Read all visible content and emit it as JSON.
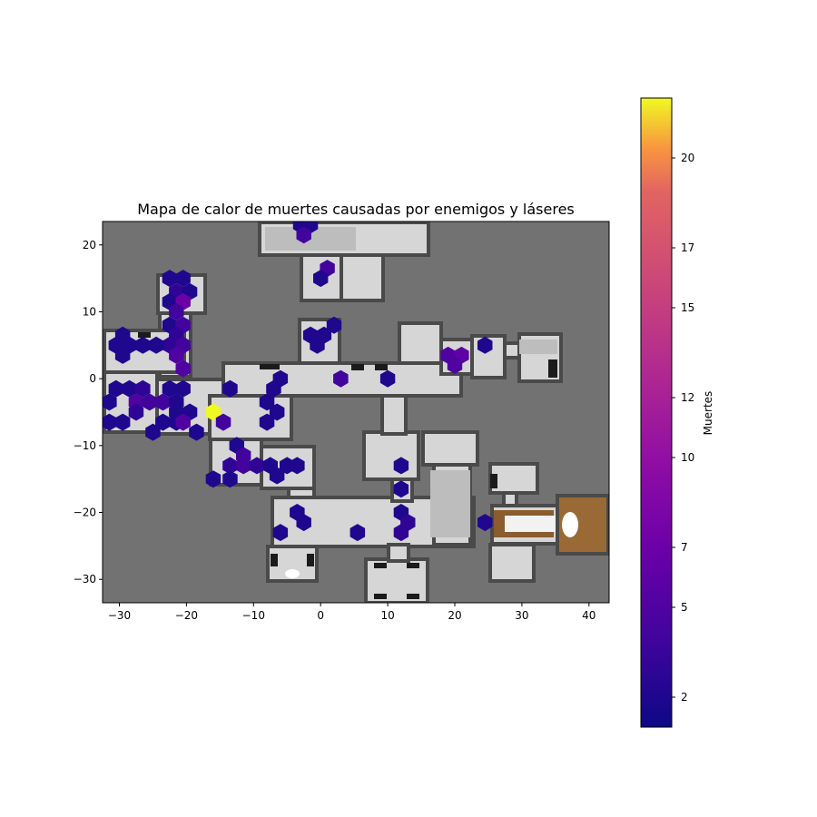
{
  "chart_data": {
    "type": "heatmap",
    "title": "Mapa de calor de muertes causadas por enemigos y láseres",
    "xlabel": "",
    "ylabel": "",
    "xlim": [
      -32.5,
      43
    ],
    "ylim": [
      -33.5,
      23.5
    ],
    "xticks": [
      -30,
      -20,
      -10,
      0,
      10,
      20,
      30,
      40
    ],
    "yticks": [
      20,
      10,
      0,
      -10,
      -20,
      -30
    ],
    "colorbar": {
      "label": "Muertes",
      "colormap": "plasma",
      "range": [
        1,
        22
      ],
      "ticks": [
        2,
        5,
        7,
        10,
        12,
        15,
        17,
        20
      ]
    },
    "background_map": "top-down level floor plan",
    "cells": [
      {
        "x": -3,
        "y": 23,
        "v": 2
      },
      {
        "x": -1.5,
        "y": 23,
        "v": 2
      },
      {
        "x": -2.5,
        "y": 21.5,
        "v": 4
      },
      {
        "x": 1,
        "y": 16.5,
        "v": 4
      },
      {
        "x": 0,
        "y": 15,
        "v": 2
      },
      {
        "x": -22.5,
        "y": 15,
        "v": 2
      },
      {
        "x": -20.5,
        "y": 15,
        "v": 2
      },
      {
        "x": -21.5,
        "y": 13,
        "v": 3
      },
      {
        "x": -19.5,
        "y": 13,
        "v": 2
      },
      {
        "x": -22.5,
        "y": 11.5,
        "v": 2
      },
      {
        "x": -20.5,
        "y": 11.5,
        "v": 7
      },
      {
        "x": -21.5,
        "y": 10,
        "v": 4
      },
      {
        "x": -22.5,
        "y": 8,
        "v": 2
      },
      {
        "x": -20.5,
        "y": 8,
        "v": 4
      },
      {
        "x": -21.5,
        "y": 6.5,
        "v": 3
      },
      {
        "x": -22.5,
        "y": 5,
        "v": 3
      },
      {
        "x": -20.5,
        "y": 5,
        "v": 4
      },
      {
        "x": -21.5,
        "y": 3.5,
        "v": 5
      },
      {
        "x": -20.5,
        "y": 1.5,
        "v": 5
      },
      {
        "x": 2,
        "y": 8,
        "v": 2
      },
      {
        "x": -1.5,
        "y": 6.5,
        "v": 2
      },
      {
        "x": 0.5,
        "y": 6.5,
        "v": 2
      },
      {
        "x": -0.5,
        "y": 5,
        "v": 2
      },
      {
        "x": -29.5,
        "y": 6.5,
        "v": 2
      },
      {
        "x": -30.5,
        "y": 5,
        "v": 2
      },
      {
        "x": -28.5,
        "y": 5,
        "v": 2
      },
      {
        "x": -26.5,
        "y": 5,
        "v": 2
      },
      {
        "x": -24.5,
        "y": 5,
        "v": 2
      },
      {
        "x": -29.5,
        "y": 3.5,
        "v": 2
      },
      {
        "x": 24.5,
        "y": 5,
        "v": 2
      },
      {
        "x": 19,
        "y": 3.5,
        "v": 5
      },
      {
        "x": 21,
        "y": 3.5,
        "v": 6
      },
      {
        "x": 20,
        "y": 2,
        "v": 5
      },
      {
        "x": -6,
        "y": 0,
        "v": 2
      },
      {
        "x": 3,
        "y": 0,
        "v": 4
      },
      {
        "x": 10,
        "y": 0,
        "v": 2
      },
      {
        "x": -30.5,
        "y": -1.5,
        "v": 2
      },
      {
        "x": -28.5,
        "y": -1.5,
        "v": 2
      },
      {
        "x": -26.5,
        "y": -1.5,
        "v": 3
      },
      {
        "x": -22.5,
        "y": -1.5,
        "v": 2
      },
      {
        "x": -20.5,
        "y": -1.5,
        "v": 2
      },
      {
        "x": -13.5,
        "y": -1.5,
        "v": 2
      },
      {
        "x": -7,
        "y": -1.5,
        "v": 2
      },
      {
        "x": -31.5,
        "y": -3.5,
        "v": 2
      },
      {
        "x": -27.5,
        "y": -3.5,
        "v": 5
      },
      {
        "x": -25.5,
        "y": -3.5,
        "v": 4
      },
      {
        "x": -23.5,
        "y": -3.5,
        "v": 4
      },
      {
        "x": -21.5,
        "y": -3.5,
        "v": 2
      },
      {
        "x": -8,
        "y": -3.5,
        "v": 2
      },
      {
        "x": -27.5,
        "y": -5,
        "v": 3
      },
      {
        "x": -21.5,
        "y": -5,
        "v": 2
      },
      {
        "x": -19.5,
        "y": -5,
        "v": 2
      },
      {
        "x": -16,
        "y": -5,
        "v": 22
      },
      {
        "x": -6.5,
        "y": -5,
        "v": 2
      },
      {
        "x": -31.5,
        "y": -6.5,
        "v": 2
      },
      {
        "x": -29.5,
        "y": -6.5,
        "v": 2
      },
      {
        "x": -23.5,
        "y": -6.5,
        "v": 2
      },
      {
        "x": -21.5,
        "y": -6.5,
        "v": 2
      },
      {
        "x": -20.5,
        "y": -6.5,
        "v": 5
      },
      {
        "x": -14.5,
        "y": -6.5,
        "v": 4
      },
      {
        "x": -8,
        "y": -6.5,
        "v": 2
      },
      {
        "x": -25,
        "y": -8,
        "v": 2
      },
      {
        "x": -18.5,
        "y": -8,
        "v": 2
      },
      {
        "x": -12.5,
        "y": -10,
        "v": 2
      },
      {
        "x": -11.5,
        "y": -11.5,
        "v": 4
      },
      {
        "x": -13.5,
        "y": -13,
        "v": 3
      },
      {
        "x": -11.5,
        "y": -13,
        "v": 4
      },
      {
        "x": -9.5,
        "y": -13,
        "v": 3
      },
      {
        "x": -7.5,
        "y": -13,
        "v": 2
      },
      {
        "x": -5,
        "y": -13,
        "v": 2
      },
      {
        "x": -3.5,
        "y": -13,
        "v": 2
      },
      {
        "x": -6.5,
        "y": -14.5,
        "v": 2
      },
      {
        "x": -16,
        "y": -15,
        "v": 2
      },
      {
        "x": -13.5,
        "y": -15,
        "v": 2
      },
      {
        "x": 12,
        "y": -13,
        "v": 2
      },
      {
        "x": 12,
        "y": -16.5,
        "v": 2
      },
      {
        "x": -3.5,
        "y": -20,
        "v": 2
      },
      {
        "x": -2.5,
        "y": -21.5,
        "v": 2
      },
      {
        "x": 12,
        "y": -20,
        "v": 2
      },
      {
        "x": 13,
        "y": -21.5,
        "v": 3
      },
      {
        "x": 12,
        "y": -23,
        "v": 3
      },
      {
        "x": 24.5,
        "y": -21.5,
        "v": 2
      },
      {
        "x": -6,
        "y": -23,
        "v": 2
      },
      {
        "x": 5.5,
        "y": -23,
        "v": 2
      }
    ]
  }
}
